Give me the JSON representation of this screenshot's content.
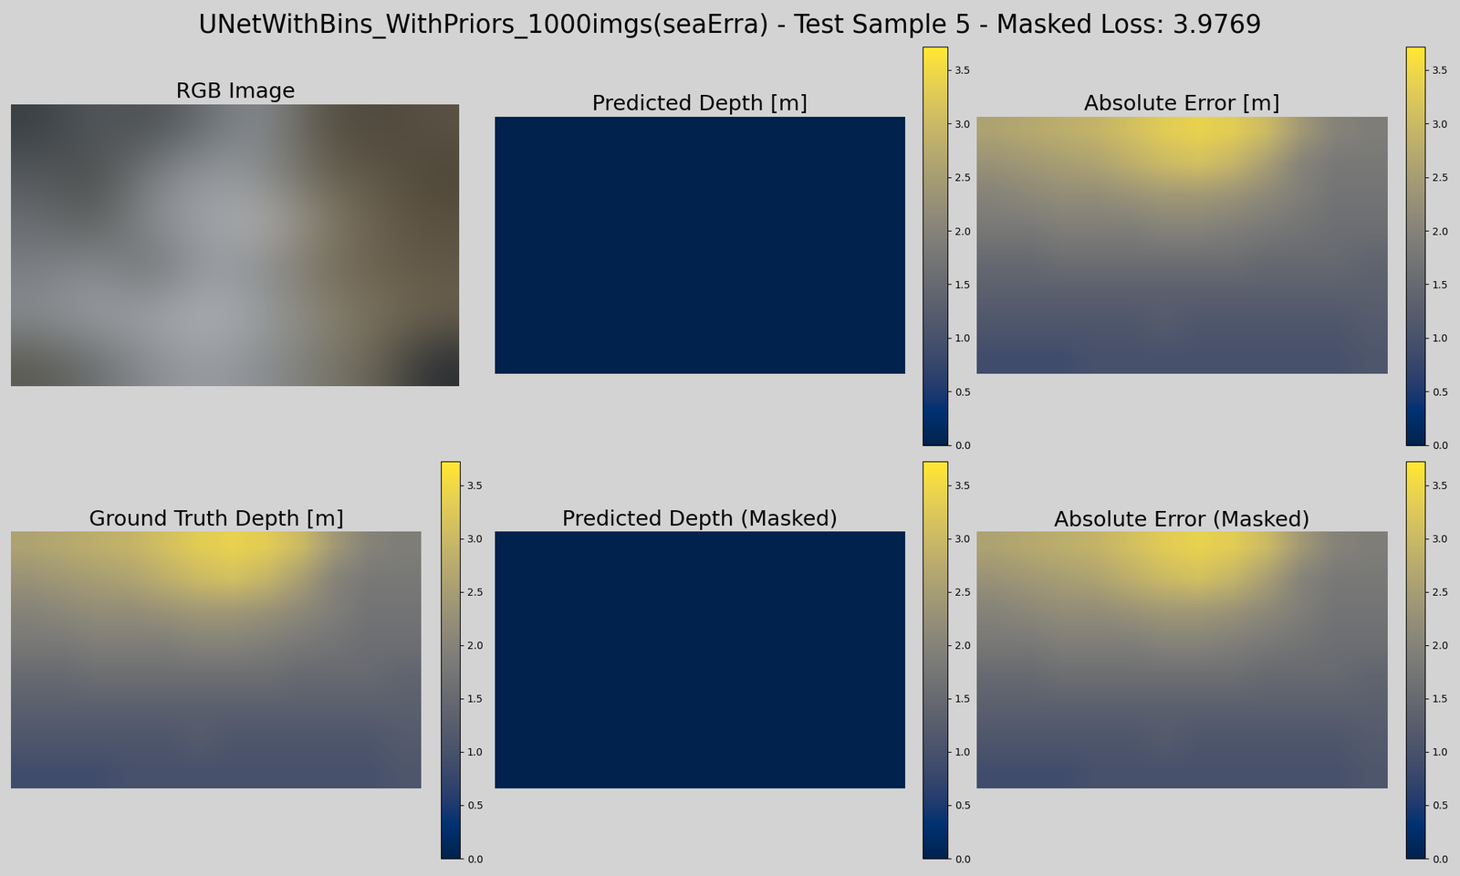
{
  "title": "UNetWithBins_WithPriors_1000imgs(seaErra) - Test Sample 5 - Masked Loss: 3.9769",
  "chart_data": [
    {
      "type": "image",
      "title": "RGB Image",
      "rgb_cells": [
        [
          "#3a3f44",
          "#555a5e",
          "#4a4e50",
          "#6a6f74",
          "#8a8f94",
          "#5a5548",
          "#4e473c",
          "#5a5244"
        ],
        [
          "#55595c",
          "#4a4c4a",
          "#7a7e82",
          "#9a9ea2",
          "#8a8e90",
          "#6a6454",
          "#5e5646",
          "#4e4638"
        ],
        [
          "#6a6e72",
          "#5a5c5a",
          "#8a8e92",
          "#a0a4a8",
          "#b0b0b0",
          "#8a8472",
          "#6a604e",
          "#5a5040"
        ],
        [
          "#7a7e82",
          "#8a8e92",
          "#6a6e70",
          "#9a9ea2",
          "#8a8e92",
          "#7a7260",
          "#6a604e",
          "#625846"
        ],
        [
          "#8a8e92",
          "#9a9ea2",
          "#a0a4a8",
          "#b0b4b8",
          "#9a9ea2",
          "#8a8676",
          "#7a705c",
          "#6a604e"
        ],
        [
          "#5a5a52",
          "#6a6e70",
          "#8a8e92",
          "#9a9ea2",
          "#8a8e92",
          "#7a7a70",
          "#6a6454",
          "#2a2e32"
        ]
      ],
      "tick_labels": false
    },
    {
      "type": "heatmap",
      "title": "Predicted Depth [m]",
      "tick_labels": false,
      "cells": [
        [
          0,
          0,
          0,
          0,
          0,
          0,
          0,
          0,
          0,
          0,
          0,
          0
        ],
        [
          0,
          0,
          0,
          0,
          0,
          0,
          0,
          0,
          0,
          0,
          0,
          0
        ],
        [
          0,
          0,
          0,
          0,
          0,
          0,
          0,
          0,
          0,
          0,
          0,
          0
        ],
        [
          0,
          0,
          0,
          0,
          0,
          0,
          0,
          0,
          0,
          0,
          0,
          0
        ],
        [
          0,
          0,
          0,
          0,
          0,
          0,
          0,
          0,
          0,
          0,
          0,
          0
        ],
        [
          0,
          0,
          0,
          0,
          0,
          0,
          0,
          0,
          0,
          0,
          0,
          0
        ],
        [
          0,
          0,
          0,
          0,
          0,
          0,
          0,
          0,
          0,
          0,
          0,
          0
        ],
        [
          0,
          0,
          0,
          0,
          0,
          0,
          0,
          0,
          0,
          0,
          0,
          0
        ]
      ],
      "colorbar_range": [
        0,
        3.72
      ],
      "colorbar_ticks": [
        {
          "value": 0,
          "label": "0.0"
        },
        0.5,
        {
          "value": 1,
          "label": "1.0"
        },
        1.5,
        {
          "value": 2,
          "label": "2.0"
        },
        2.5,
        {
          "value": 3,
          "label": "3.0"
        },
        3.5
      ]
    },
    {
      "type": "heatmap",
      "title": "Absolute Error [m]",
      "tick_labels": false,
      "cells": [
        [
          2.6,
          2.7,
          2.8,
          2.9,
          3.1,
          3.3,
          3.4,
          3.3,
          3.0,
          2.4,
          2.0,
          1.9
        ],
        [
          2.3,
          2.4,
          2.5,
          2.6,
          2.8,
          3.0,
          3.1,
          2.9,
          2.5,
          2.0,
          1.8,
          1.8
        ],
        [
          2.0,
          2.1,
          2.2,
          2.2,
          2.3,
          2.4,
          2.4,
          2.3,
          2.1,
          1.9,
          1.7,
          1.7
        ],
        [
          1.8,
          1.8,
          1.9,
          1.9,
          1.9,
          2.0,
          2.0,
          1.9,
          1.8,
          1.7,
          1.6,
          1.6
        ],
        [
          1.5,
          1.5,
          1.6,
          1.6,
          1.6,
          1.6,
          1.6,
          1.6,
          1.5,
          1.5,
          1.5,
          1.4
        ],
        [
          1.3,
          1.3,
          1.3,
          1.3,
          1.3,
          1.3,
          1.3,
          1.3,
          1.3,
          1.3,
          1.3,
          1.3
        ],
        [
          1.1,
          1.1,
          1.1,
          1.1,
          1.1,
          1.2,
          1.1,
          1.1,
          1.1,
          1.1,
          1.1,
          1.2
        ],
        [
          0.9,
          0.9,
          0.9,
          1.0,
          1.0,
          1.0,
          1.0,
          1.0,
          1.0,
          1.0,
          1.0,
          1.1
        ]
      ],
      "colorbar_range": [
        0,
        3.72
      ],
      "colorbar_ticks": [
        {
          "value": 0,
          "label": "0.0"
        },
        0.5,
        {
          "value": 1,
          "label": "1.0"
        },
        1.5,
        {
          "value": 2,
          "label": "2.0"
        },
        2.5,
        {
          "value": 3,
          "label": "3.0"
        },
        3.5
      ]
    },
    {
      "type": "heatmap",
      "title": "Ground Truth Depth [m]",
      "tick_labels": false,
      "cells": [
        [
          2.6,
          2.7,
          2.8,
          2.9,
          3.1,
          3.3,
          3.4,
          3.3,
          3.0,
          2.4,
          2.0,
          1.9
        ],
        [
          2.3,
          2.4,
          2.5,
          2.6,
          2.8,
          3.0,
          3.1,
          2.9,
          2.5,
          2.0,
          1.8,
          1.8
        ],
        [
          2.0,
          2.1,
          2.2,
          2.2,
          2.3,
          2.4,
          2.4,
          2.3,
          2.1,
          1.9,
          1.7,
          1.7
        ],
        [
          1.8,
          1.8,
          1.9,
          1.9,
          1.9,
          2.0,
          2.0,
          1.9,
          1.8,
          1.7,
          1.6,
          1.6
        ],
        [
          1.5,
          1.5,
          1.6,
          1.6,
          1.6,
          1.6,
          1.6,
          1.6,
          1.5,
          1.5,
          1.5,
          1.4
        ],
        [
          1.3,
          1.3,
          1.3,
          1.3,
          1.3,
          1.3,
          1.3,
          1.3,
          1.3,
          1.3,
          1.3,
          1.3
        ],
        [
          1.1,
          1.1,
          1.1,
          1.1,
          1.1,
          1.2,
          1.1,
          1.1,
          1.1,
          1.1,
          1.1,
          1.2
        ],
        [
          0.9,
          0.9,
          0.9,
          1.0,
          1.0,
          1.0,
          1.0,
          1.0,
          1.0,
          1.0,
          1.0,
          1.1
        ]
      ],
      "colorbar_range": [
        0,
        3.72
      ],
      "colorbar_ticks": [
        {
          "value": 0,
          "label": "0.0"
        },
        0.5,
        {
          "value": 1,
          "label": "1.0"
        },
        1.5,
        {
          "value": 2,
          "label": "2.0"
        },
        2.5,
        {
          "value": 3,
          "label": "3.0"
        },
        3.5
      ]
    },
    {
      "type": "heatmap",
      "title": "Predicted Depth (Masked)",
      "tick_labels": false,
      "cells": [
        [
          0,
          0,
          0,
          0,
          0,
          0,
          0,
          0,
          0,
          0,
          0,
          0
        ],
        [
          0,
          0,
          0,
          0,
          0,
          0,
          0,
          0,
          0,
          0,
          0,
          0
        ],
        [
          0,
          0,
          0,
          0,
          0,
          0,
          0,
          0,
          0,
          0,
          0,
          0
        ],
        [
          0,
          0,
          0,
          0,
          0,
          0,
          0,
          0,
          0,
          0,
          0,
          0
        ],
        [
          0,
          0,
          0,
          0,
          0,
          0,
          0,
          0,
          0,
          0,
          0,
          0
        ],
        [
          0,
          0,
          0,
          0,
          0,
          0,
          0,
          0,
          0,
          0,
          0,
          0
        ],
        [
          0,
          0,
          0,
          0,
          0,
          0,
          0,
          0,
          0,
          0,
          0,
          0
        ],
        [
          0,
          0,
          0,
          0,
          0,
          0,
          0,
          0,
          0,
          0,
          0,
          0
        ]
      ],
      "colorbar_range": [
        0,
        3.72
      ],
      "colorbar_ticks": [
        {
          "value": 0,
          "label": "0.0"
        },
        0.5,
        {
          "value": 1,
          "label": "1.0"
        },
        1.5,
        {
          "value": 2,
          "label": "2.0"
        },
        2.5,
        {
          "value": 3,
          "label": "3.0"
        },
        3.5
      ]
    },
    {
      "type": "heatmap",
      "title": "Absolute Error (Masked)",
      "tick_labels": false,
      "cells": [
        [
          2.6,
          2.7,
          2.8,
          2.9,
          3.1,
          3.3,
          3.4,
          3.3,
          3.0,
          2.4,
          2.0,
          1.9
        ],
        [
          2.3,
          2.4,
          2.5,
          2.6,
          2.8,
          3.0,
          3.1,
          2.9,
          2.5,
          2.0,
          1.8,
          1.8
        ],
        [
          2.0,
          2.1,
          2.2,
          2.2,
          2.3,
          2.4,
          2.4,
          2.3,
          2.1,
          1.9,
          1.7,
          1.7
        ],
        [
          1.8,
          1.8,
          1.9,
          1.9,
          1.9,
          2.0,
          2.0,
          1.9,
          1.8,
          1.7,
          1.6,
          1.6
        ],
        [
          1.5,
          1.5,
          1.6,
          1.6,
          1.6,
          1.6,
          1.6,
          1.6,
          1.5,
          1.5,
          1.5,
          1.4
        ],
        [
          1.3,
          1.3,
          1.3,
          1.3,
          1.3,
          1.3,
          1.3,
          1.3,
          1.3,
          1.3,
          1.3,
          1.3
        ],
        [
          1.1,
          1.1,
          1.1,
          1.1,
          1.1,
          1.2,
          1.1,
          1.1,
          1.1,
          1.1,
          1.1,
          1.2
        ],
        [
          0.9,
          0.9,
          0.9,
          1.0,
          1.0,
          1.0,
          1.0,
          1.0,
          1.0,
          1.0,
          1.0,
          1.1
        ]
      ],
      "colorbar_range": [
        0,
        3.72
      ],
      "colorbar_ticks": [
        {
          "value": 0,
          "label": "0.0"
        },
        0.5,
        {
          "value": 1,
          "label": "1.0"
        },
        1.5,
        {
          "value": 2,
          "label": "2.0"
        },
        2.5,
        {
          "value": 3,
          "label": "3.0"
        },
        3.5
      ]
    }
  ]
}
